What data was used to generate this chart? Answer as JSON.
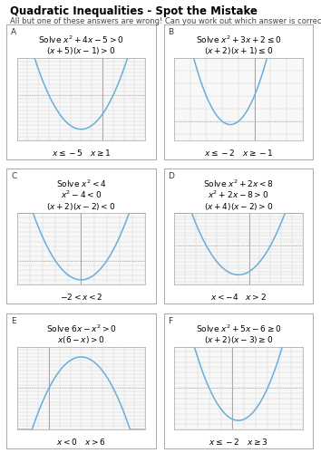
{
  "title": "Quadratic Inequalities - Spot the Mistake",
  "subtitle": "All but one of these answers are wrong! Can you work out which answer is correct?",
  "panels": [
    {
      "label": "A",
      "lines": [
        "Solve $x^2 + 4x - 5 > 0$",
        "$(x + 5)(x - 1) > 0$"
      ],
      "answer": "$x \\leq -5 \\quad x \\geq 1$",
      "roots": [
        -5,
        1
      ],
      "open_up": true,
      "xlim": [
        -8,
        4
      ],
      "ylim": [
        -12,
        10
      ],
      "xaxis_y": -9,
      "xtick_step": 1,
      "ytick_step": 1
    },
    {
      "label": "B",
      "lines": [
        "Solve $x^2 + 3x + 2 \\leq 0$",
        "$(x + 2)(x + 1) \\leq 0$"
      ],
      "answer": "$x \\leq -2 \\quad x \\geq -1$",
      "roots": [
        -2,
        -1
      ],
      "open_up": true,
      "xlim": [
        -5,
        3
      ],
      "ylim": [
        -1.5,
        5
      ],
      "xaxis_y": -1.0,
      "xtick_step": 1,
      "ytick_step": 1
    },
    {
      "label": "C",
      "lines": [
        "Solve $x^2 < 4$",
        "$x^2 - 4 < 0$",
        "$(x + 2)(x - 2) < 0$"
      ],
      "answer": "$-2 < x < 2$",
      "roots": [
        -2,
        2
      ],
      "open_up": true,
      "xlim": [
        -5,
        5
      ],
      "ylim": [
        -5,
        10
      ],
      "xaxis_y": -3,
      "xtick_step": 1,
      "ytick_step": 1
    },
    {
      "label": "D",
      "lines": [
        "Solve $x^2 + 2x < 8$",
        "$x^2 + 2x - 8 > 0$",
        "$(x + 4)(x - 2) > 0$"
      ],
      "answer": "$x < -4 \\quad x > 2$",
      "roots": [
        -4,
        2
      ],
      "open_up": true,
      "xlim": [
        -7,
        5
      ],
      "ylim": [
        -12,
        10
      ],
      "xaxis_y": -9,
      "xtick_step": 1,
      "ytick_step": 1
    },
    {
      "label": "E",
      "lines": [
        "Solve $6x - x^2 > 0$",
        "$x(6 - x) > 0$"
      ],
      "answer": "$x < 0 \\quad x > 6$",
      "roots": [
        0,
        6
      ],
      "open_up": false,
      "xlim": [
        -3,
        9
      ],
      "ylim": [
        -12,
        12
      ],
      "xaxis_y": -3,
      "xtick_step": 1,
      "ytick_step": 1
    },
    {
      "label": "F",
      "lines": [
        "Solve $x^2 + 5x - 6 \\geq 0$",
        "$(x + 2)(x - 3) \\geq 0$"
      ],
      "answer": "$x \\leq -2 \\quad x \\geq 3$",
      "roots": [
        -2,
        3
      ],
      "open_up": true,
      "xlim": [
        -5,
        6
      ],
      "ylim": [
        -8,
        8
      ],
      "xaxis_y": -6,
      "xtick_step": 1,
      "ytick_step": 1
    }
  ],
  "curve_color": "#6aaed6",
  "bg_color": "#ffffff",
  "grid_color": "#d0d0d0",
  "axis_color": "#888888",
  "border_color": "#aaaaaa",
  "panel_bg": "#ffffff",
  "title_fontsize": 8.5,
  "subtitle_fontsize": 6.0,
  "label_fontsize": 6.5,
  "text_fontsize": 6.5,
  "answer_fontsize": 6.5
}
